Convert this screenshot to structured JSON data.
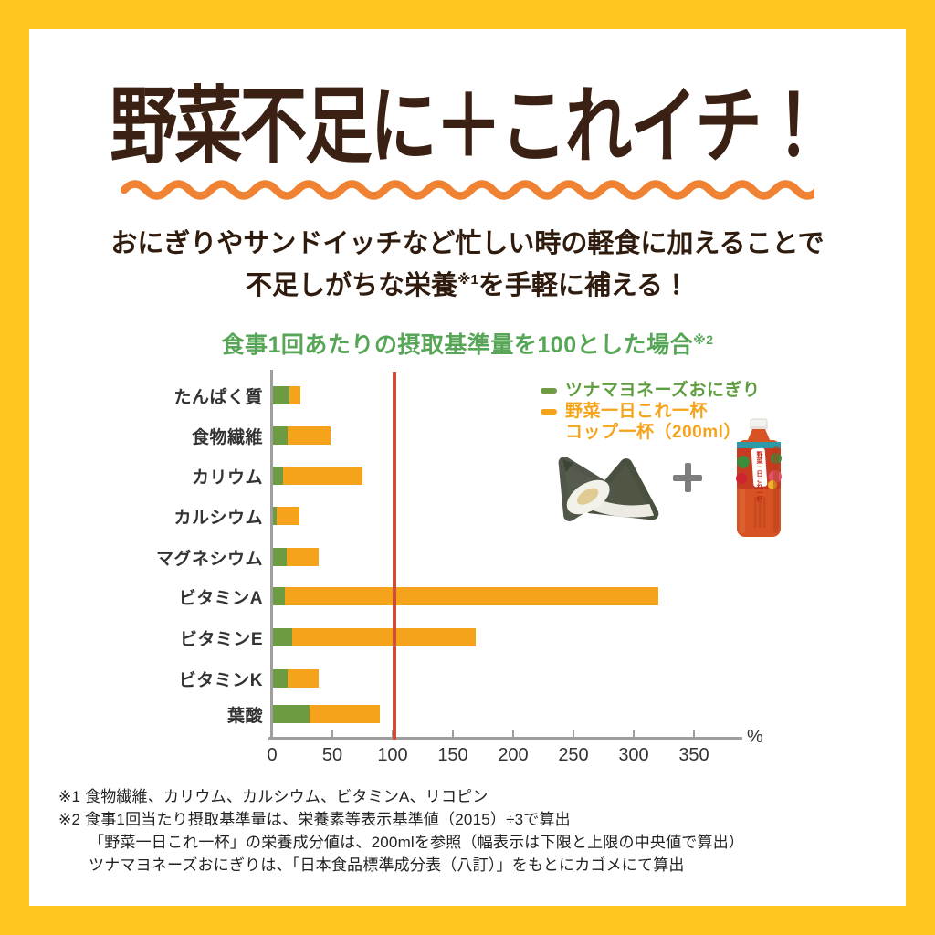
{
  "header": {
    "title": "野菜不足に＋これイチ！",
    "subtitle_line1": "おにぎりやサンドイッチなど忙しい時の軽食に加えることで",
    "subtitle_line2_pre": "不足しがちな栄養",
    "subtitle_line2_ref": "※1",
    "subtitle_line2_post": "を手軽に補える！"
  },
  "chart": {
    "title": "食事1回あたりの摂取基準量を100とした場合",
    "title_ref": "※2",
    "unit_label": "%"
  },
  "legend": {
    "series1_label": "ツナマヨネーズおにぎり",
    "series2_label_line1": "野菜一日これ一杯",
    "series2_label_line2": "コップ一杯（200ml）"
  },
  "images": {
    "onigiri_alt": "ツナマヨネーズおにぎり",
    "plus_sign": "＋",
    "bottle_alt": "野菜一日これ一杯 ペットボトル",
    "bottle_label_text": "野菜一日これ一杯"
  },
  "chart_data": {
    "type": "bar",
    "orientation": "horizontal",
    "stacked": true,
    "title": "食事1回あたりの摂取基準量を100とした場合※2",
    "categories": [
      "たんぱく質",
      "食物繊維",
      "カリウム",
      "カルシウム",
      "マグネシウム",
      "ビタミンA",
      "ビタミンE",
      "ビタミンK",
      "葉酸"
    ],
    "series": [
      {
        "name": "ツナマヨネーズおにぎり",
        "color": "#6d9b42",
        "values": [
          14,
          12,
          8,
          3,
          11,
          10,
          16,
          12,
          30
        ]
      },
      {
        "name": "野菜一日これ一杯 コップ一杯（200ml）",
        "color": "#f6a31c",
        "values": [
          9,
          36,
          66,
          19,
          27,
          310,
          152,
          26,
          59
        ]
      }
    ],
    "x_ticks": [
      0,
      50,
      100,
      150,
      200,
      250,
      300,
      350
    ],
    "xlim": [
      0,
      388
    ],
    "unit": "%",
    "reference_line": {
      "value": 100,
      "color": "#d04a38"
    },
    "grid": false,
    "legend_position": "top-right"
  },
  "footnotes": {
    "line1": "※1 食物繊維、カリウム、カルシウム、ビタミンA、リコピン",
    "line2": "※2 食事1回当たり摂取基準量は、栄養素等表示基準値（2015）÷3で算出",
    "line3": "「野菜一日これ一杯」の栄養成分値は、200mlを参照（幅表示は下限と上限の中央値で算出）",
    "line4": "ツナマヨネーズおにぎりは、「日本食品標準成分表（八訂）」をもとにカゴメにて算出"
  },
  "colors": {
    "frame_yellow": "#ffc71f",
    "title_brown": "#3a2113",
    "wave_orange": "#ef8233",
    "chart_title_green": "#57a657",
    "bar_green": "#6d9b42",
    "bar_orange": "#f6a31c",
    "axis_gray": "#9e9e9e",
    "reference_red": "#d04a38"
  }
}
